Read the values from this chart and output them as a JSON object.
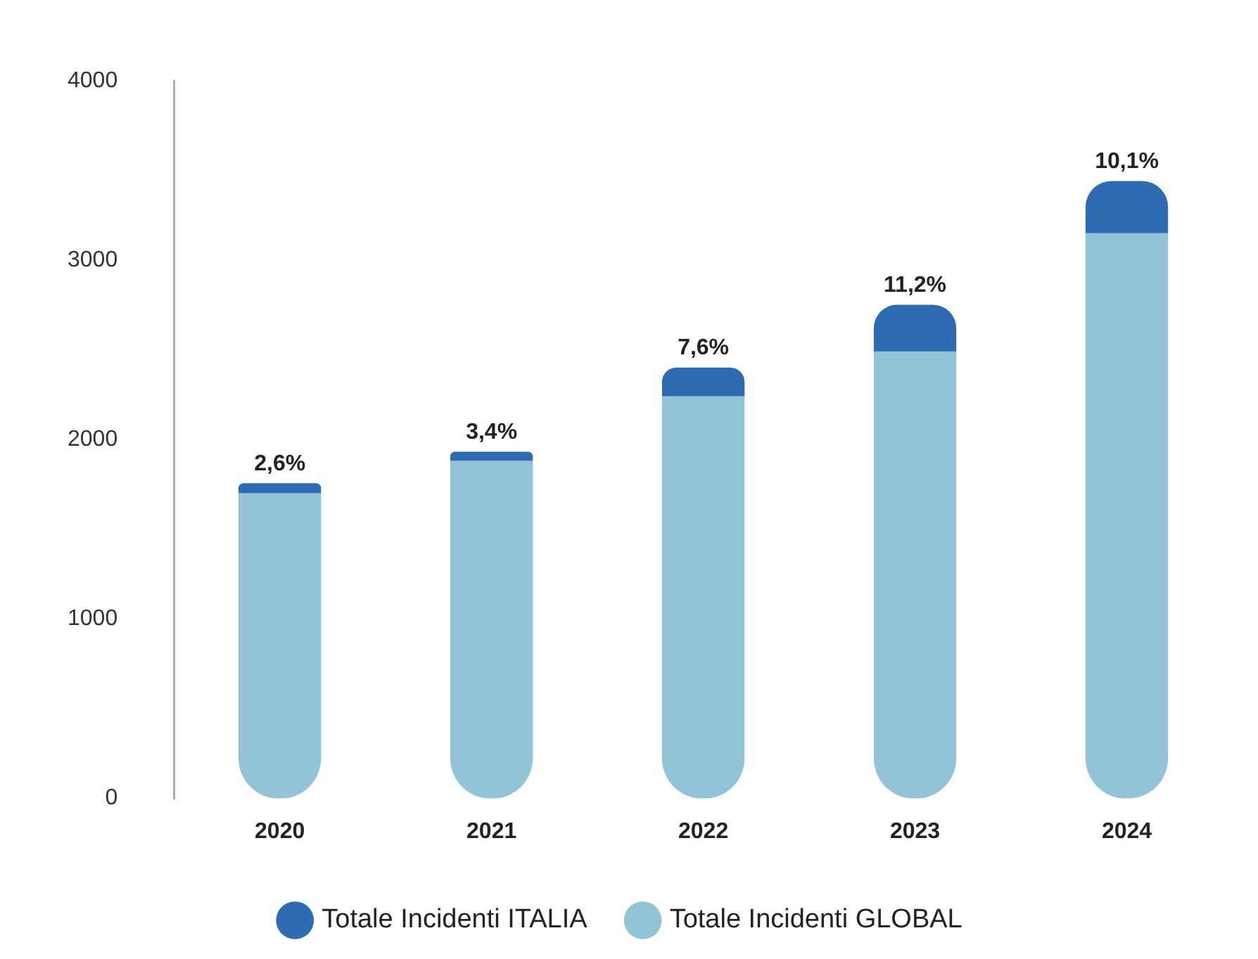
{
  "chart_data": {
    "type": "bar",
    "stacked": true,
    "categories": [
      "2020",
      "2021",
      "2022",
      "2023",
      "2024"
    ],
    "series": [
      {
        "name": "Totale Incidenti GLOBAL",
        "color": "#92c3d6",
        "values": [
          1700,
          1880,
          2240,
          2490,
          3150
        ]
      },
      {
        "name": "Totale Incidenti ITALIA",
        "color": "#2e6bb3",
        "values": [
          55,
          50,
          160,
          260,
          290
        ]
      }
    ],
    "annotations": [
      {
        "text": "2,6%",
        "x": "2020",
        "y": 1755
      },
      {
        "text": "3,4%",
        "x": "2021",
        "y": 1930
      },
      {
        "text": "7,6%",
        "x": "2022",
        "y": 2400
      },
      {
        "text": "11,2%",
        "x": "2023",
        "y": 2750
      },
      {
        "text": "10,1%",
        "x": "2024",
        "y": 3440
      }
    ],
    "ylim": [
      0,
      4000
    ],
    "yticks": [
      0,
      1000,
      2000,
      3000,
      4000
    ],
    "grid": false,
    "legend": "bottom"
  }
}
